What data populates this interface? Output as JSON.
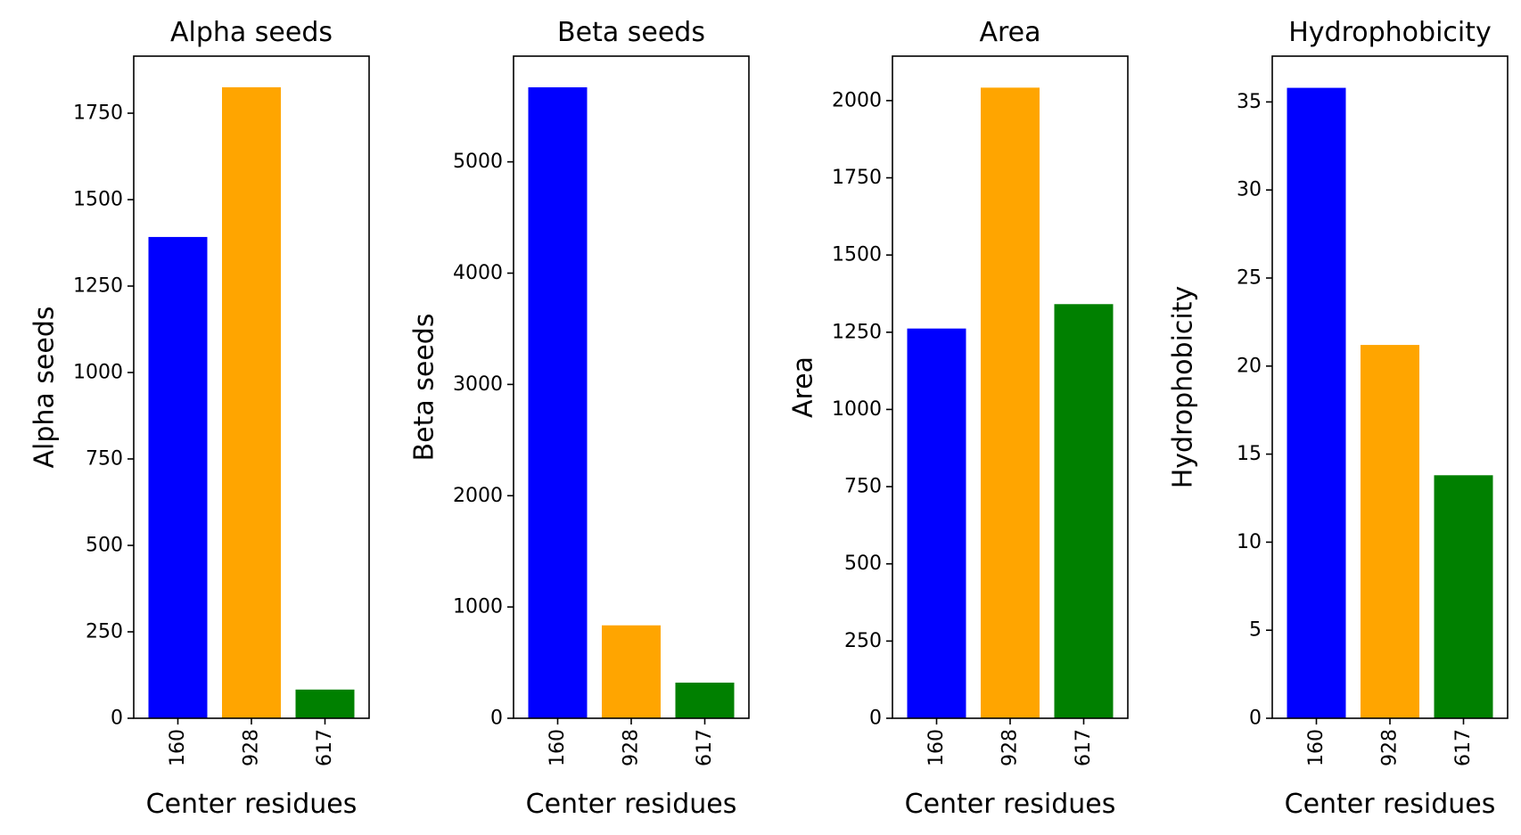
{
  "chart_data": [
    {
      "type": "bar",
      "title": "Alpha seeds",
      "xlabel": "Center residues",
      "ylabel": "Alpha seeds",
      "categories": [
        "160",
        "928",
        "617"
      ],
      "values": [
        1392,
        1825,
        83
      ],
      "colors": [
        "#0000ff",
        "#ffa500",
        "#008000"
      ],
      "ylim": [
        0,
        1915
      ],
      "yticks": [
        0,
        250,
        500,
        750,
        1000,
        1250,
        1500,
        1750
      ],
      "ytick_labels": [
        "0",
        "250",
        "500",
        "750",
        "1000",
        "1250",
        "1500",
        "1750"
      ],
      "grid": false
    },
    {
      "type": "bar",
      "title": "Beta seeds",
      "xlabel": "Center residues",
      "ylabel": "Beta seeds",
      "categories": [
        "160",
        "928",
        "617"
      ],
      "values": [
        5670,
        835,
        320
      ],
      "colors": [
        "#0000ff",
        "#ffa500",
        "#008000"
      ],
      "ylim": [
        0,
        5950
      ],
      "yticks": [
        0,
        1000,
        2000,
        3000,
        4000,
        5000
      ],
      "ytick_labels": [
        "0",
        "1000",
        "2000",
        "3000",
        "4000",
        "5000"
      ],
      "grid": false
    },
    {
      "type": "bar",
      "title": "Area",
      "xlabel": "Center residues",
      "ylabel": "Area",
      "categories": [
        "160",
        "928",
        "617"
      ],
      "values": [
        1262,
        2042,
        1341
      ],
      "colors": [
        "#0000ff",
        "#ffa500",
        "#008000"
      ],
      "ylim": [
        0,
        2144
      ],
      "yticks": [
        0,
        250,
        500,
        750,
        1000,
        1250,
        1500,
        1750,
        2000
      ],
      "ytick_labels": [
        "0",
        "250",
        "500",
        "750",
        "1000",
        "1250",
        "1500",
        "1750",
        "2000"
      ],
      "grid": false
    },
    {
      "type": "bar",
      "title": "Hydrophobicity",
      "xlabel": "Center residues",
      "ylabel": "Hydrophobicity",
      "categories": [
        "160",
        "928",
        "617"
      ],
      "values": [
        35.8,
        21.2,
        13.8
      ],
      "colors": [
        "#0000ff",
        "#ffa500",
        "#008000"
      ],
      "ylim": [
        0,
        37.6
      ],
      "yticks": [
        0,
        5,
        10,
        15,
        20,
        25,
        30,
        35
      ],
      "ytick_labels": [
        "0",
        "5",
        "10",
        "15",
        "20",
        "25",
        "30",
        "35"
      ],
      "grid": false
    }
  ]
}
